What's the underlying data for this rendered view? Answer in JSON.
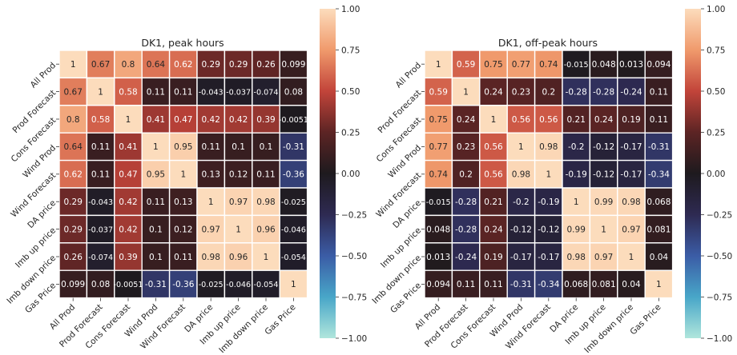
{
  "chart_data": [
    {
      "type": "heatmap",
      "title": "DK1, peak hours",
      "labels": [
        "All Prod",
        "Prod Forecast",
        "Cons Forecast",
        "Wind Prod",
        "Wind Forecast",
        "DA price",
        "Imb up price",
        "Imb down price",
        "Gas Price"
      ],
      "matrix": [
        [
          "1",
          "0.67",
          "0.8",
          "0.64",
          "0.62",
          "0.29",
          "0.29",
          "0.26",
          "0.099"
        ],
        [
          "0.67",
          "1",
          "0.58",
          "0.11",
          "0.11",
          "-0.043",
          "-0.037",
          "-0.074",
          "0.08"
        ],
        [
          "0.8",
          "0.58",
          "1",
          "0.41",
          "0.47",
          "0.42",
          "0.42",
          "0.39",
          "-0.0051"
        ],
        [
          "0.64",
          "0.11",
          "0.41",
          "1",
          "0.95",
          "0.11",
          "0.1",
          "0.1",
          "-0.31"
        ],
        [
          "0.62",
          "0.11",
          "0.47",
          "0.95",
          "1",
          "0.13",
          "0.12",
          "0.11",
          "-0.36"
        ],
        [
          "0.29",
          "-0.043",
          "0.42",
          "0.11",
          "0.13",
          "1",
          "0.97",
          "0.98",
          "-0.025"
        ],
        [
          "0.29",
          "-0.037",
          "0.42",
          "0.1",
          "0.12",
          "0.97",
          "1",
          "0.96",
          "-0.046"
        ],
        [
          "0.26",
          "-0.074",
          "0.39",
          "0.1",
          "0.11",
          "0.98",
          "0.96",
          "1",
          "-0.054"
        ],
        [
          "0.099",
          "0.08",
          "-0.0051",
          "-0.31",
          "-0.36",
          "-0.025",
          "-0.046",
          "-0.054",
          "1"
        ]
      ],
      "colorbar": {
        "range": [
          -1,
          1
        ],
        "ticks": [
          "1.00",
          "0.75",
          "0.50",
          "0.25",
          "0.00",
          "−0.25",
          "−0.50",
          "−0.75",
          "−1.00"
        ]
      }
    },
    {
      "type": "heatmap",
      "title": "DK1, off-peak hours",
      "labels": [
        "All Prod",
        "Prod Forecast",
        "Cons Forecast",
        "Wind Prod",
        "Wind Forecast",
        "DA price",
        "Imb up price",
        "Imb down price",
        "Gas Price"
      ],
      "matrix": [
        [
          "1",
          "0.59",
          "0.75",
          "0.77",
          "0.74",
          "-0.015",
          "0.048",
          "0.013",
          "0.094"
        ],
        [
          "0.59",
          "1",
          "0.24",
          "0.23",
          "0.2",
          "-0.28",
          "-0.28",
          "-0.24",
          "0.11"
        ],
        [
          "0.75",
          "0.24",
          "1",
          "0.56",
          "0.56",
          "0.21",
          "0.24",
          "0.19",
          "0.11"
        ],
        [
          "0.77",
          "0.23",
          "0.56",
          "1",
          "0.98",
          "-0.2",
          "-0.12",
          "-0.17",
          "-0.31"
        ],
        [
          "0.74",
          "0.2",
          "0.56",
          "0.98",
          "1",
          "-0.19",
          "-0.12",
          "-0.17",
          "-0.34"
        ],
        [
          "-0.015",
          "-0.28",
          "0.21",
          "-0.2",
          "-0.19",
          "1",
          "0.99",
          "0.98",
          "0.068"
        ],
        [
          "0.048",
          "-0.28",
          "0.24",
          "-0.12",
          "-0.12",
          "0.99",
          "1",
          "0.97",
          "0.081"
        ],
        [
          "0.013",
          "-0.24",
          "0.19",
          "-0.17",
          "-0.17",
          "0.98",
          "0.97",
          "1",
          "0.04"
        ],
        [
          "0.094",
          "0.11",
          "0.11",
          "-0.31",
          "-0.34",
          "0.068",
          "0.081",
          "0.04",
          "1"
        ]
      ],
      "colorbar": {
        "range": [
          -1,
          1
        ],
        "ticks": [
          "1.00",
          "0.75",
          "0.50",
          "0.25",
          "0.00",
          "−0.25",
          "−0.50",
          "−0.75",
          "−1.00"
        ]
      }
    }
  ]
}
